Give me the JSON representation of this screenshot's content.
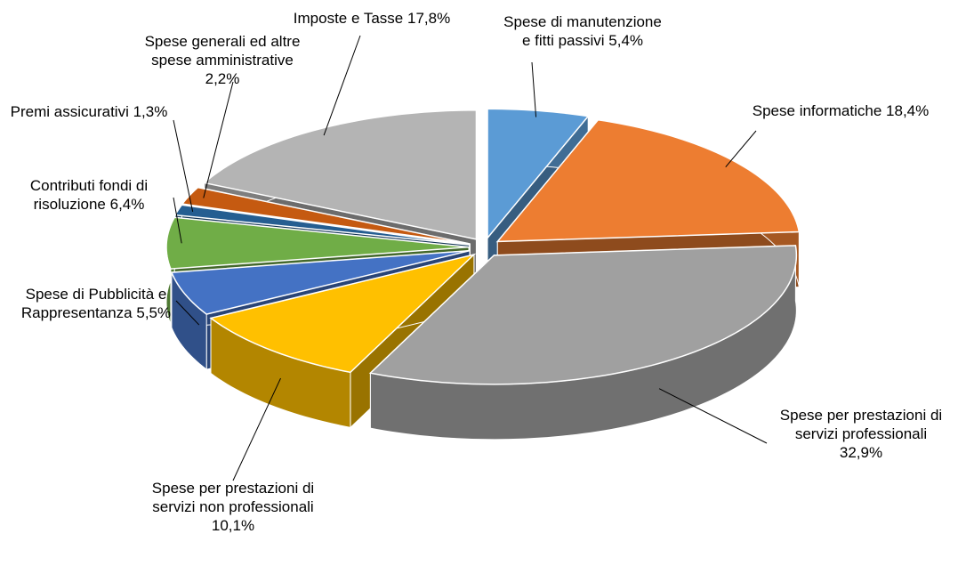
{
  "chart_data": {
    "type": "pie3d",
    "categories": [
      "Spese di manutenzione e fitti passivi",
      "Spese informatiche",
      "Spese per prestazioni di servizi professionali",
      "Spese per prestazioni di servizi non professionali",
      "Spese di Pubblicità e Rappresentanza",
      "Contributi fondi di risoluzione",
      "Premi assicurativi",
      "Spese generali ed altre spese amministrative",
      "Imposte e Tasse"
    ],
    "values": [
      5.4,
      18.4,
      32.9,
      10.1,
      5.5,
      6.4,
      1.3,
      2.2,
      17.8
    ],
    "value_labels": [
      "5,4%",
      "18,4%",
      "32,9%",
      "10,1%",
      "5,5%",
      "6,4%",
      "1,3%",
      "2,2%",
      "17,8%"
    ],
    "colors": [
      "#5b9bd5",
      "#ed7d31",
      "#a0a0a0",
      "#ffc000",
      "#4472c4",
      "#70ad47",
      "#255e91",
      "#c55a11",
      "#b4b4b4"
    ]
  }
}
